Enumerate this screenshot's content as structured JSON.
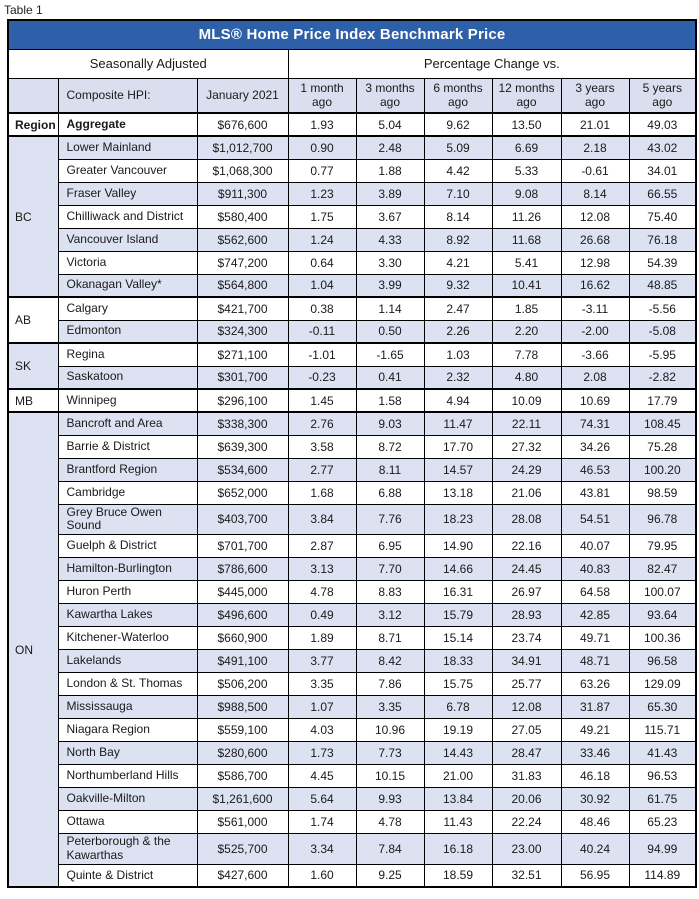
{
  "page": {
    "label": "Table 1"
  },
  "table": {
    "title": "MLS® Home Price Index Benchmark Price",
    "group_headers": {
      "left": "Seasonally Adjusted",
      "right": "Percentage Change vs."
    },
    "columns": [
      "",
      "Composite HPI:",
      "January 2021",
      "1 month ago",
      "3 months ago",
      "6 months ago",
      "12 months ago",
      "3 years ago",
      "5 years ago"
    ],
    "colors": {
      "title_bar_blue": "#2E5FA9",
      "row_alt_blue": "#DCE2F1",
      "header_fill_blue": "#D9DFEF",
      "border_black": "#000000"
    },
    "groups": [
      {
        "region": "Region",
        "rows": [
          {
            "name": "Aggregate",
            "price": "$676,600",
            "changes": [
              "1.93",
              "5.04",
              "9.62",
              "13.50",
              "21.01",
              "49.03"
            ]
          }
        ]
      },
      {
        "region": "BC",
        "rows": [
          {
            "name": "Lower Mainland",
            "price": "$1,012,700",
            "changes": [
              "0.90",
              "2.48",
              "5.09",
              "6.69",
              "2.18",
              "43.02"
            ]
          },
          {
            "name": "Greater Vancouver",
            "price": "$1,068,300",
            "changes": [
              "0.77",
              "1.88",
              "4.42",
              "5.33",
              "-0.61",
              "34.01"
            ]
          },
          {
            "name": "Fraser Valley",
            "price": "$911,300",
            "changes": [
              "1.23",
              "3.89",
              "7.10",
              "9.08",
              "8.14",
              "66.55"
            ]
          },
          {
            "name": "Chilliwack and District",
            "price": "$580,400",
            "changes": [
              "1.75",
              "3.67",
              "8.14",
              "11.26",
              "12.08",
              "75.40"
            ]
          },
          {
            "name": "Vancouver Island",
            "price": "$562,600",
            "changes": [
              "1.24",
              "4.33",
              "8.92",
              "11.68",
              "26.68",
              "76.18"
            ]
          },
          {
            "name": "Victoria",
            "price": "$747,200",
            "changes": [
              "0.64",
              "3.30",
              "4.21",
              "5.41",
              "12.98",
              "54.39"
            ]
          },
          {
            "name": "Okanagan Valley*",
            "price": "$564,800",
            "changes": [
              "1.04",
              "3.99",
              "9.32",
              "10.41",
              "16.62",
              "48.85"
            ]
          }
        ]
      },
      {
        "region": "AB",
        "rows": [
          {
            "name": "Calgary",
            "price": "$421,700",
            "changes": [
              "0.38",
              "1.14",
              "2.47",
              "1.85",
              "-3.11",
              "-5.56"
            ]
          },
          {
            "name": "Edmonton",
            "price": "$324,300",
            "changes": [
              "-0.11",
              "0.50",
              "2.26",
              "2.20",
              "-2.00",
              "-5.08"
            ]
          }
        ]
      },
      {
        "region": "SK",
        "rows": [
          {
            "name": "Regina",
            "price": "$271,100",
            "changes": [
              "-1.01",
              "-1.65",
              "1.03",
              "7.78",
              "-3.66",
              "-5.95"
            ]
          },
          {
            "name": "Saskatoon",
            "price": "$301,700",
            "changes": [
              "-0.23",
              "0.41",
              "2.32",
              "4.80",
              "2.08",
              "-2.82"
            ]
          }
        ]
      },
      {
        "region": "MB",
        "rows": [
          {
            "name": "Winnipeg",
            "price": "$296,100",
            "changes": [
              "1.45",
              "1.58",
              "4.94",
              "10.09",
              "10.69",
              "17.79"
            ]
          }
        ]
      },
      {
        "region": "ON",
        "rows": [
          {
            "name": "Bancroft and Area",
            "price": "$338,300",
            "changes": [
              "2.76",
              "9.03",
              "11.47",
              "22.11",
              "74.31",
              "108.45"
            ]
          },
          {
            "name": "Barrie & District",
            "price": "$639,300",
            "changes": [
              "3.58",
              "8.72",
              "17.70",
              "27.32",
              "34.26",
              "75.28"
            ]
          },
          {
            "name": "Brantford Region",
            "price": "$534,600",
            "changes": [
              "2.77",
              "8.11",
              "14.57",
              "24.29",
              "46.53",
              "100.20"
            ]
          },
          {
            "name": "Cambridge",
            "price": "$652,000",
            "changes": [
              "1.68",
              "6.88",
              "13.18",
              "21.06",
              "43.81",
              "98.59"
            ]
          },
          {
            "name": "Grey Bruce Owen Sound",
            "price": "$403,700",
            "changes": [
              "3.84",
              "7.76",
              "18.23",
              "28.08",
              "54.51",
              "96.78"
            ]
          },
          {
            "name": "Guelph & District",
            "price": "$701,700",
            "changes": [
              "2.87",
              "6.95",
              "14.90",
              "22.16",
              "40.07",
              "79.95"
            ]
          },
          {
            "name": "Hamilton-Burlington",
            "price": "$786,600",
            "changes": [
              "3.13",
              "7.70",
              "14.66",
              "24.45",
              "40.83",
              "82.47"
            ]
          },
          {
            "name": "Huron Perth",
            "price": "$445,000",
            "changes": [
              "4.78",
              "8.83",
              "16.31",
              "26.97",
              "64.58",
              "100.07"
            ]
          },
          {
            "name": "Kawartha Lakes",
            "price": "$496,600",
            "changes": [
              "0.49",
              "3.12",
              "15.79",
              "28.93",
              "42.85",
              "93.64"
            ]
          },
          {
            "name": "Kitchener-Waterloo",
            "price": "$660,900",
            "changes": [
              "1.89",
              "8.71",
              "15.14",
              "23.74",
              "49.71",
              "100.36"
            ]
          },
          {
            "name": "Lakelands",
            "price": "$491,100",
            "changes": [
              "3.77",
              "8.42",
              "18.33",
              "34.91",
              "48.71",
              "96.58"
            ]
          },
          {
            "name": "London & St. Thomas",
            "price": "$506,200",
            "changes": [
              "3.35",
              "7.86",
              "15.75",
              "25.77",
              "63.26",
              "129.09"
            ]
          },
          {
            "name": "Mississauga",
            "price": "$988,500",
            "changes": [
              "1.07",
              "3.35",
              "6.78",
              "12.08",
              "31.87",
              "65.30"
            ]
          },
          {
            "name": "Niagara Region",
            "price": "$559,100",
            "changes": [
              "4.03",
              "10.96",
              "19.19",
              "27.05",
              "49.21",
              "115.71"
            ]
          },
          {
            "name": "North Bay",
            "price": "$280,600",
            "changes": [
              "1.73",
              "7.73",
              "14.43",
              "28.47",
              "33.46",
              "41.43"
            ]
          },
          {
            "name": "Northumberland Hills",
            "price": "$586,700",
            "changes": [
              "4.45",
              "10.15",
              "21.00",
              "31.83",
              "46.18",
              "96.53"
            ]
          },
          {
            "name": "Oakville-Milton",
            "price": "$1,261,600",
            "changes": [
              "5.64",
              "9.93",
              "13.84",
              "20.06",
              "30.92",
              "61.75"
            ]
          },
          {
            "name": "Ottawa",
            "price": "$561,000",
            "changes": [
              "1.74",
              "4.78",
              "11.43",
              "22.24",
              "48.46",
              "65.23"
            ]
          },
          {
            "name": "Peterborough & the Kawarthas",
            "price": "$525,700",
            "changes": [
              "3.34",
              "7.84",
              "16.18",
              "23.00",
              "40.24",
              "94.99"
            ]
          },
          {
            "name": "Quinte & District",
            "price": "$427,600",
            "changes": [
              "1.60",
              "9.25",
              "18.59",
              "32.51",
              "56.95",
              "114.89"
            ]
          }
        ]
      }
    ]
  }
}
